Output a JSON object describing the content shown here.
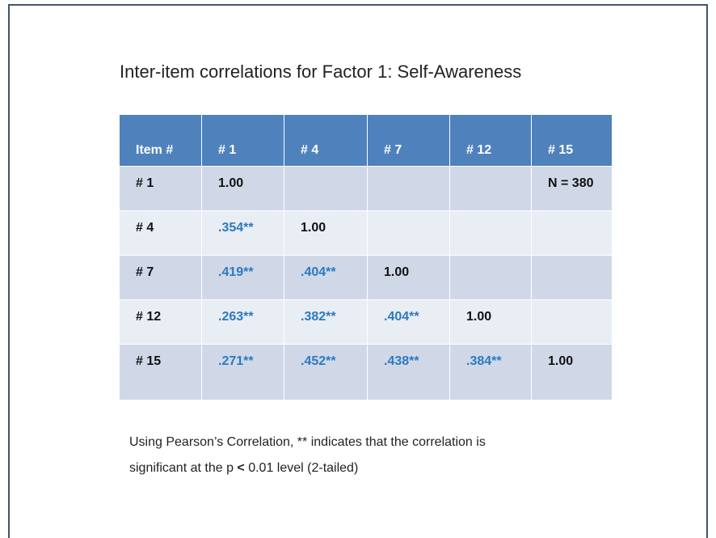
{
  "title": "Inter-item correlations for Factor 1: Self-Awareness",
  "table": {
    "header": [
      "Item #",
      "# 1",
      "# 4",
      "# 7",
      "# 12",
      "# 15"
    ],
    "rows": [
      [
        "# 1",
        "1.00",
        null,
        null,
        null,
        "N = 380"
      ],
      [
        "# 4",
        ".354**",
        "1.00",
        null,
        null,
        null
      ],
      [
        "# 7",
        ".419**",
        ".404**",
        "1.00",
        null,
        null
      ],
      [
        "# 12",
        ".263**",
        ".382**",
        ".404**",
        "1.00",
        null
      ],
      [
        "# 15",
        ".271**",
        ".452**",
        ".438**",
        ".384**",
        "1.00"
      ]
    ]
  },
  "footnote": {
    "line1": "Using Pearson’s Correlation, ** indicates that the correlation is",
    "line2_before": "significant at the p ",
    "line2_bold": "<",
    "line2_after": " 0.01 level (2-tailed)"
  }
}
